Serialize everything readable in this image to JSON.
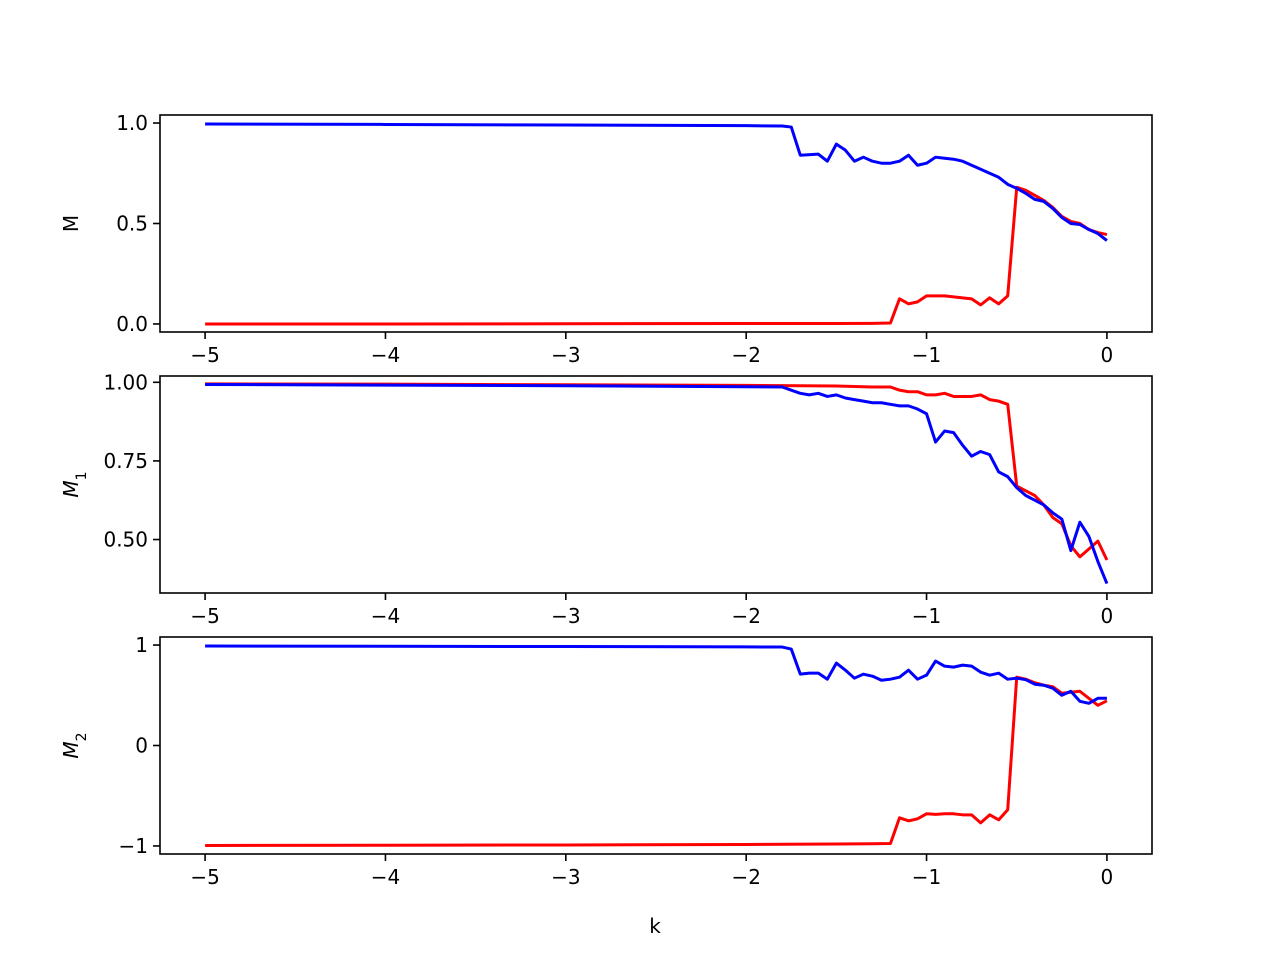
{
  "chart_data": [
    {
      "type": "line",
      "ylabel": "M",
      "ylabel_main": "M",
      "ylabel_sub": "",
      "xlabel": "",
      "xlim": [
        -5.25,
        0.25
      ],
      "ylim": [
        -0.04,
        1.04
      ],
      "xticks": [
        -5,
        -4,
        -3,
        -2,
        -1,
        0
      ],
      "xtick_labels": [
        "−5",
        "−4",
        "−3",
        "−2",
        "−1",
        "0"
      ],
      "yticks": [
        0.0,
        0.5,
        1.0
      ],
      "ytick_labels": [
        "0.0",
        "0.5",
        "1.0"
      ],
      "grid": false,
      "series": [
        {
          "color": "#ff0000",
          "points": [
            [
              -5.0,
              0.0
            ],
            [
              -4.0,
              0.0
            ],
            [
              -3.0,
              0.001
            ],
            [
              -2.0,
              0.002
            ],
            [
              -1.5,
              0.002
            ],
            [
              -1.3,
              0.003
            ],
            [
              -1.2,
              0.005
            ],
            [
              -1.15,
              0.125
            ],
            [
              -1.1,
              0.1
            ],
            [
              -1.05,
              0.11
            ],
            [
              -1.0,
              0.14
            ],
            [
              -0.95,
              0.14
            ],
            [
              -0.9,
              0.14
            ],
            [
              -0.85,
              0.135
            ],
            [
              -0.8,
              0.13
            ],
            [
              -0.75,
              0.125
            ],
            [
              -0.7,
              0.095
            ],
            [
              -0.65,
              0.13
            ],
            [
              -0.6,
              0.1
            ],
            [
              -0.55,
              0.14
            ],
            [
              -0.5,
              0.68
            ],
            [
              -0.45,
              0.665
            ],
            [
              -0.4,
              0.64
            ],
            [
              -0.35,
              0.615
            ],
            [
              -0.3,
              0.58
            ],
            [
              -0.25,
              0.535
            ],
            [
              -0.2,
              0.51
            ],
            [
              -0.15,
              0.5
            ],
            [
              -0.1,
              0.47
            ],
            [
              -0.05,
              0.455
            ],
            [
              0.0,
              0.445
            ]
          ]
        },
        {
          "color": "#0000ff",
          "points": [
            [
              -5.0,
              0.995
            ],
            [
              -4.0,
              0.993
            ],
            [
              -3.0,
              0.99
            ],
            [
              -2.0,
              0.987
            ],
            [
              -1.8,
              0.985
            ],
            [
              -1.75,
              0.98
            ],
            [
              -1.7,
              0.84
            ],
            [
              -1.6,
              0.845
            ],
            [
              -1.55,
              0.81
            ],
            [
              -1.5,
              0.895
            ],
            [
              -1.45,
              0.865
            ],
            [
              -1.4,
              0.81
            ],
            [
              -1.35,
              0.83
            ],
            [
              -1.3,
              0.81
            ],
            [
              -1.25,
              0.8
            ],
            [
              -1.2,
              0.8
            ],
            [
              -1.15,
              0.81
            ],
            [
              -1.1,
              0.84
            ],
            [
              -1.05,
              0.79
            ],
            [
              -1.0,
              0.8
            ],
            [
              -0.95,
              0.83
            ],
            [
              -0.9,
              0.825
            ],
            [
              -0.85,
              0.82
            ],
            [
              -0.8,
              0.81
            ],
            [
              -0.75,
              0.79
            ],
            [
              -0.7,
              0.77
            ],
            [
              -0.65,
              0.75
            ],
            [
              -0.6,
              0.73
            ],
            [
              -0.55,
              0.695
            ],
            [
              -0.5,
              0.675
            ],
            [
              -0.45,
              0.65
            ],
            [
              -0.4,
              0.62
            ],
            [
              -0.35,
              0.61
            ],
            [
              -0.3,
              0.575
            ],
            [
              -0.25,
              0.53
            ],
            [
              -0.2,
              0.5
            ],
            [
              -0.15,
              0.495
            ],
            [
              -0.1,
              0.47
            ],
            [
              -0.05,
              0.45
            ],
            [
              0.0,
              0.415
            ]
          ]
        }
      ]
    },
    {
      "type": "line",
      "ylabel": "M_1",
      "ylabel_main": "M",
      "ylabel_sub": "1",
      "xlabel": "",
      "xlim": [
        -5.25,
        0.25
      ],
      "ylim": [
        0.33,
        1.02
      ],
      "xticks": [
        -5,
        -4,
        -3,
        -2,
        -1,
        0
      ],
      "xtick_labels": [
        "−5",
        "−4",
        "−3",
        "−2",
        "−1",
        "0"
      ],
      "yticks": [
        0.5,
        0.75,
        1.0
      ],
      "ytick_labels": [
        "0.50",
        "0.75",
        "1.00"
      ],
      "grid": false,
      "series": [
        {
          "color": "#ff0000",
          "points": [
            [
              -5.0,
              0.995
            ],
            [
              -4.0,
              0.994
            ],
            [
              -3.0,
              0.992
            ],
            [
              -2.0,
              0.99
            ],
            [
              -1.5,
              0.988
            ],
            [
              -1.3,
              0.985
            ],
            [
              -1.2,
              0.985
            ],
            [
              -1.15,
              0.975
            ],
            [
              -1.1,
              0.97
            ],
            [
              -1.05,
              0.97
            ],
            [
              -1.0,
              0.96
            ],
            [
              -0.95,
              0.96
            ],
            [
              -0.9,
              0.965
            ],
            [
              -0.85,
              0.955
            ],
            [
              -0.8,
              0.955
            ],
            [
              -0.75,
              0.955
            ],
            [
              -0.7,
              0.96
            ],
            [
              -0.65,
              0.945
            ],
            [
              -0.6,
              0.94
            ],
            [
              -0.55,
              0.93
            ],
            [
              -0.5,
              0.67
            ],
            [
              -0.45,
              0.655
            ],
            [
              -0.4,
              0.64
            ],
            [
              -0.35,
              0.61
            ],
            [
              -0.3,
              0.57
            ],
            [
              -0.25,
              0.55
            ],
            [
              -0.2,
              0.48
            ],
            [
              -0.15,
              0.445
            ],
            [
              -0.1,
              0.47
            ],
            [
              -0.05,
              0.495
            ],
            [
              0.0,
              0.435
            ]
          ]
        },
        {
          "color": "#0000ff",
          "points": [
            [
              -5.0,
              0.993
            ],
            [
              -4.0,
              0.991
            ],
            [
              -3.0,
              0.989
            ],
            [
              -2.0,
              0.986
            ],
            [
              -1.8,
              0.985
            ],
            [
              -1.75,
              0.975
            ],
            [
              -1.7,
              0.965
            ],
            [
              -1.65,
              0.96
            ],
            [
              -1.6,
              0.965
            ],
            [
              -1.55,
              0.955
            ],
            [
              -1.5,
              0.96
            ],
            [
              -1.45,
              0.95
            ],
            [
              -1.4,
              0.945
            ],
            [
              -1.35,
              0.94
            ],
            [
              -1.3,
              0.935
            ],
            [
              -1.25,
              0.935
            ],
            [
              -1.2,
              0.93
            ],
            [
              -1.15,
              0.925
            ],
            [
              -1.1,
              0.925
            ],
            [
              -1.05,
              0.915
            ],
            [
              -1.0,
              0.9
            ],
            [
              -0.95,
              0.81
            ],
            [
              -0.9,
              0.845
            ],
            [
              -0.85,
              0.84
            ],
            [
              -0.8,
              0.8
            ],
            [
              -0.75,
              0.765
            ],
            [
              -0.7,
              0.78
            ],
            [
              -0.65,
              0.77
            ],
            [
              -0.6,
              0.715
            ],
            [
              -0.55,
              0.7
            ],
            [
              -0.5,
              0.665
            ],
            [
              -0.45,
              0.64
            ],
            [
              -0.4,
              0.625
            ],
            [
              -0.35,
              0.61
            ],
            [
              -0.3,
              0.585
            ],
            [
              -0.25,
              0.565
            ],
            [
              -0.2,
              0.465
            ],
            [
              -0.15,
              0.555
            ],
            [
              -0.1,
              0.51
            ],
            [
              -0.05,
              0.43
            ],
            [
              0.0,
              0.36
            ]
          ]
        }
      ]
    },
    {
      "type": "line",
      "ylabel": "M_2",
      "ylabel_main": "M",
      "ylabel_sub": "2",
      "xlabel": "k",
      "xlim": [
        -5.25,
        0.25
      ],
      "ylim": [
        -1.08,
        1.08
      ],
      "xticks": [
        -5,
        -4,
        -3,
        -2,
        -1,
        0
      ],
      "xtick_labels": [
        "−5",
        "−4",
        "−3",
        "−2",
        "−1",
        "0"
      ],
      "yticks": [
        -1,
        0,
        1
      ],
      "ytick_labels": [
        "−1",
        "0",
        "1"
      ],
      "grid": false,
      "series": [
        {
          "color": "#ff0000",
          "points": [
            [
              -5.0,
              -0.995
            ],
            [
              -4.0,
              -0.993
            ],
            [
              -3.0,
              -0.99
            ],
            [
              -2.0,
              -0.985
            ],
            [
              -1.5,
              -0.98
            ],
            [
              -1.3,
              -0.978
            ],
            [
              -1.2,
              -0.975
            ],
            [
              -1.15,
              -0.72
            ],
            [
              -1.1,
              -0.75
            ],
            [
              -1.05,
              -0.73
            ],
            [
              -1.0,
              -0.68
            ],
            [
              -0.95,
              -0.685
            ],
            [
              -0.9,
              -0.68
            ],
            [
              -0.85,
              -0.68
            ],
            [
              -0.8,
              -0.69
            ],
            [
              -0.75,
              -0.69
            ],
            [
              -0.7,
              -0.77
            ],
            [
              -0.65,
              -0.69
            ],
            [
              -0.6,
              -0.74
            ],
            [
              -0.55,
              -0.64
            ],
            [
              -0.5,
              0.68
            ],
            [
              -0.45,
              0.66
            ],
            [
              -0.4,
              0.625
            ],
            [
              -0.35,
              0.6
            ],
            [
              -0.3,
              0.585
            ],
            [
              -0.25,
              0.52
            ],
            [
              -0.2,
              0.53
            ],
            [
              -0.15,
              0.54
            ],
            [
              -0.1,
              0.47
            ],
            [
              -0.05,
              0.4
            ],
            [
              0.0,
              0.445
            ]
          ]
        },
        {
          "color": "#0000ff",
          "points": [
            [
              -5.0,
              0.99
            ],
            [
              -4.0,
              0.988
            ],
            [
              -3.0,
              0.985
            ],
            [
              -2.0,
              0.982
            ],
            [
              -1.8,
              0.98
            ],
            [
              -1.75,
              0.96
            ],
            [
              -1.7,
              0.71
            ],
            [
              -1.65,
              0.72
            ],
            [
              -1.6,
              0.72
            ],
            [
              -1.55,
              0.66
            ],
            [
              -1.5,
              0.82
            ],
            [
              -1.45,
              0.75
            ],
            [
              -1.4,
              0.67
            ],
            [
              -1.35,
              0.71
            ],
            [
              -1.3,
              0.69
            ],
            [
              -1.25,
              0.65
            ],
            [
              -1.2,
              0.66
            ],
            [
              -1.15,
              0.68
            ],
            [
              -1.1,
              0.75
            ],
            [
              -1.05,
              0.66
            ],
            [
              -1.0,
              0.7
            ],
            [
              -0.95,
              0.84
            ],
            [
              -0.9,
              0.79
            ],
            [
              -0.85,
              0.78
            ],
            [
              -0.8,
              0.8
            ],
            [
              -0.75,
              0.79
            ],
            [
              -0.7,
              0.73
            ],
            [
              -0.65,
              0.7
            ],
            [
              -0.6,
              0.72
            ],
            [
              -0.55,
              0.66
            ],
            [
              -0.5,
              0.67
            ],
            [
              -0.45,
              0.655
            ],
            [
              -0.4,
              0.61
            ],
            [
              -0.35,
              0.6
            ],
            [
              -0.3,
              0.57
            ],
            [
              -0.25,
              0.5
            ],
            [
              -0.2,
              0.54
            ],
            [
              -0.15,
              0.44
            ],
            [
              -0.1,
              0.42
            ],
            [
              -0.05,
              0.47
            ],
            [
              0.0,
              0.47
            ]
          ]
        }
      ]
    }
  ]
}
